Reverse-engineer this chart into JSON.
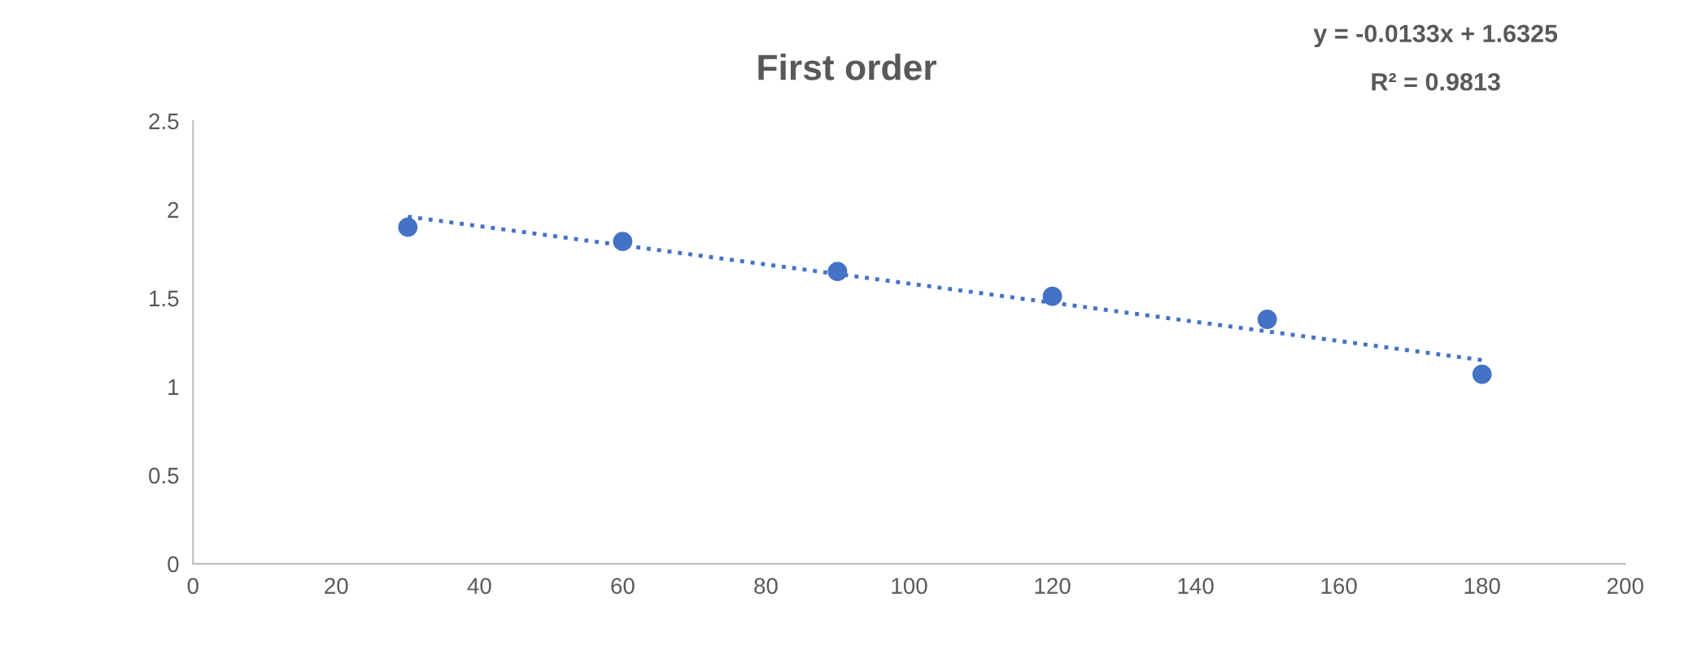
{
  "chart_data": {
    "type": "scatter",
    "title": "First order",
    "xlim": [
      0,
      200
    ],
    "xticks": [
      0,
      20,
      40,
      60,
      80,
      100,
      120,
      140,
      160,
      180,
      200
    ],
    "ylim": [
      0,
      2.5
    ],
    "yticks": [
      0,
      0.5,
      1,
      1.5,
      2,
      2.5
    ],
    "x": [
      30,
      60,
      90,
      120,
      150,
      180
    ],
    "series": [
      {
        "color": "#4472c4",
        "marker": "circle",
        "values": [
          1.9,
          1.82,
          1.65,
          1.51,
          1.38,
          1.07
        ]
      },
      {
        "type": "line",
        "color": "#4472c4",
        "line_style": "dotted",
        "marker": "none",
        "x": [
          30,
          180
        ],
        "values": [
          1.96,
          1.15
        ]
      }
    ],
    "annotations": [
      "y = -0.0133x + 1.6325",
      "R² = 0.9813"
    ],
    "grid": false,
    "legend": false
  }
}
